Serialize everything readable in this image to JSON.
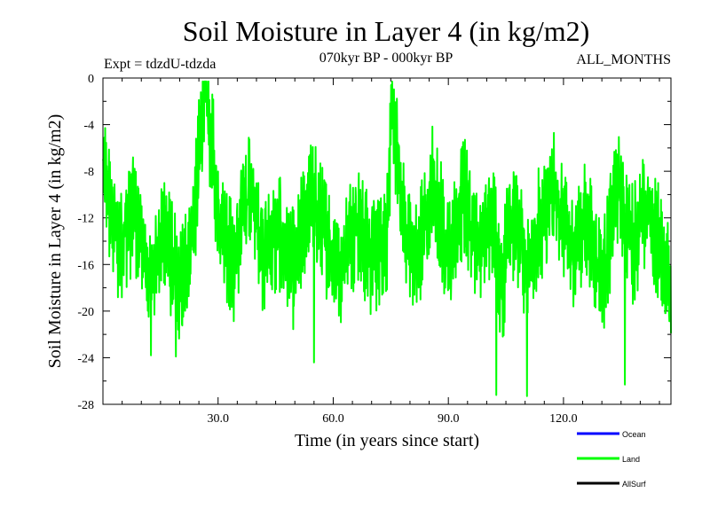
{
  "chart_data": {
    "type": "line",
    "title": "Soil Moisture in Layer 4 (in kg/m2)",
    "subtitle": "070kyr BP - 000kyr BP",
    "left_note": "Expt = tdzdU-tdzda",
    "right_note": "ALL_MONTHS",
    "xlabel": "Time (in years since start)",
    "ylabel": "Soil Moisture in Layer 4 (in kg/m2)",
    "xlim": [
      0,
      148
    ],
    "ylim": [
      -28,
      0
    ],
    "xticks": [
      30,
      60,
      90,
      120
    ],
    "xtick_labels": [
      "30.0",
      "60.0",
      "90.0",
      "120.0"
    ],
    "yticks": [
      0,
      -4,
      -8,
      -12,
      -16,
      -20,
      -24,
      -28
    ],
    "ytick_labels": [
      "0",
      "-4",
      "-8",
      "-12",
      "-16",
      "-20",
      "-24",
      "-28"
    ],
    "legend": [
      {
        "name": "Ocean",
        "color": "#0000ff"
      },
      {
        "name": "Land",
        "color": "#00ff00"
      },
      {
        "name": "AllSurf",
        "color": "#000000"
      }
    ],
    "series": [
      {
        "name": "Land",
        "color": "#00ff00",
        "x": [
          0,
          4,
          8,
          12,
          16,
          20,
          24,
          26.5,
          30,
          34,
          38,
          42,
          46,
          50,
          54,
          58,
          62,
          66,
          70,
          74,
          75.5,
          78,
          82,
          86,
          90,
          94,
          98,
          102,
          104,
          106,
          110,
          114,
          118,
          122,
          126,
          130,
          134,
          138,
          142,
          146,
          148
        ],
        "values": [
          -8,
          -14,
          -11,
          -17,
          -13,
          -19,
          -12,
          -0.5,
          -11,
          -16,
          -9,
          -15,
          -13,
          -17,
          -10,
          -14,
          -16,
          -12,
          -15,
          -13,
          -2.5,
          -12,
          -16,
          -9,
          -16,
          -10,
          -14,
          -12,
          -18,
          -11,
          -16,
          -13,
          -10,
          -15,
          -12,
          -17,
          -9,
          -14,
          -11,
          -16,
          -18
        ],
        "min_points": [
          {
            "x": 102.5,
            "y": -27.2
          },
          {
            "x": 110.5,
            "y": -27.3
          },
          {
            "x": 55,
            "y": -24.4
          },
          {
            "x": 136,
            "y": -26.3
          },
          {
            "x": 12.5,
            "y": -23.8
          },
          {
            "x": 19,
            "y": -23.9
          }
        ],
        "amplitude": 6
      }
    ]
  }
}
